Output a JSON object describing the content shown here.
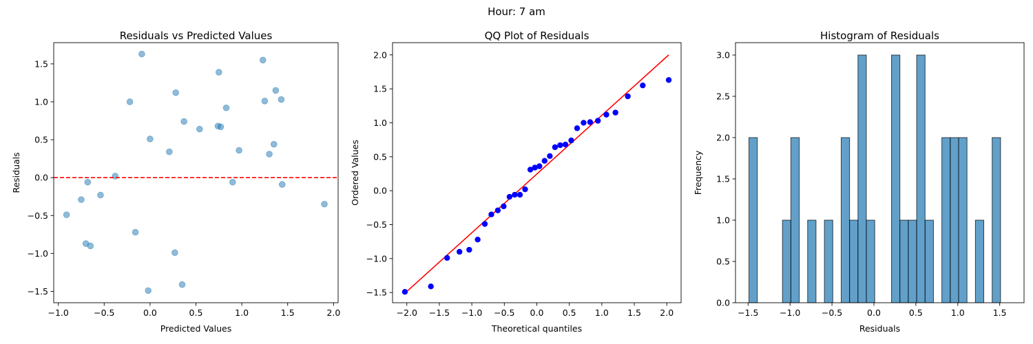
{
  "suptitle": "Hour: 7 am",
  "chart_data": [
    {
      "type": "scatter",
      "title": "Residuals vs Predicted Values",
      "xlabel": "Predicted Values",
      "ylabel": "Residuals",
      "xlim": [
        -1.05,
        2.05
      ],
      "ylim": [
        -1.65,
        1.78
      ],
      "xticks": [
        -1.0,
        -0.5,
        0.0,
        0.5,
        1.0,
        1.5,
        2.0
      ],
      "xtick_labels": [
        "−1.0",
        "−0.5",
        "0.0",
        "0.5",
        "1.0",
        "1.5",
        "2.0"
      ],
      "yticks": [
        -1.5,
        -1.0,
        -0.5,
        0.0,
        0.5,
        1.0,
        1.5
      ],
      "ytick_labels": [
        "−1.5",
        "−1.0",
        "−0.5",
        "0.0",
        "0.5",
        "1.0",
        "1.5"
      ],
      "point_color": "#1f77b4",
      "reference_line": {
        "y": 0.0,
        "color": "#ff0000",
        "style": "dashed"
      },
      "points": [
        {
          "x": -0.09,
          "y": 1.63
        },
        {
          "x": 1.23,
          "y": 1.55
        },
        {
          "x": 0.75,
          "y": 1.39
        },
        {
          "x": 1.37,
          "y": 1.15
        },
        {
          "x": 0.28,
          "y": 1.12
        },
        {
          "x": 1.43,
          "y": 1.03
        },
        {
          "x": 1.25,
          "y": 1.01
        },
        {
          "x": -0.22,
          "y": 1.0
        },
        {
          "x": 0.83,
          "y": 0.92
        },
        {
          "x": 0.37,
          "y": 0.74
        },
        {
          "x": 0.74,
          "y": 0.68
        },
        {
          "x": 0.77,
          "y": 0.67
        },
        {
          "x": 0.54,
          "y": 0.64
        },
        {
          "x": 0.0,
          "y": 0.51
        },
        {
          "x": 1.35,
          "y": 0.44
        },
        {
          "x": 0.97,
          "y": 0.36
        },
        {
          "x": 0.21,
          "y": 0.34
        },
        {
          "x": 1.3,
          "y": 0.31
        },
        {
          "x": -0.38,
          "y": 0.02
        },
        {
          "x": 0.9,
          "y": -0.06
        },
        {
          "x": -0.68,
          "y": -0.06
        },
        {
          "x": 1.44,
          "y": -0.09
        },
        {
          "x": -0.54,
          "y": -0.23
        },
        {
          "x": -0.75,
          "y": -0.29
        },
        {
          "x": 1.9,
          "y": -0.35
        },
        {
          "x": -0.91,
          "y": -0.49
        },
        {
          "x": -0.16,
          "y": -0.72
        },
        {
          "x": -0.7,
          "y": -0.87
        },
        {
          "x": -0.65,
          "y": -0.9
        },
        {
          "x": 0.27,
          "y": -0.99
        },
        {
          "x": 0.35,
          "y": -1.41
        },
        {
          "x": -0.02,
          "y": -1.49
        }
      ]
    },
    {
      "type": "scatter",
      "title": "QQ Plot of Residuals",
      "xlabel": "Theoretical quantiles",
      "ylabel": "Ordered Values",
      "xlim": [
        -2.22,
        2.22
      ],
      "ylim": [
        -1.65,
        2.18
      ],
      "xticks": [
        -2.0,
        -1.5,
        -1.0,
        -0.5,
        0.0,
        0.5,
        1.0,
        1.5,
        2.0
      ],
      "xtick_labels": [
        "−2.0",
        "−1.5",
        "−1.0",
        "−0.5",
        "0.0",
        "0.5",
        "1.0",
        "1.5",
        "2.0"
      ],
      "yticks": [
        -1.5,
        -1.0,
        -0.5,
        0.0,
        0.5,
        1.0,
        1.5,
        2.0
      ],
      "ytick_labels": [
        "−1.5",
        "−1.0",
        "−0.5",
        "0.0",
        "0.5",
        "1.0",
        "1.5",
        "2.0"
      ],
      "point_color": "#0000ff",
      "fit_line": {
        "x": [
          -2.03,
          2.03
        ],
        "y": [
          -1.51,
          2.0
        ],
        "color": "#ff0000"
      },
      "theoretical": [
        -2.03,
        -1.63,
        -1.38,
        -1.19,
        -1.04,
        -0.91,
        -0.8,
        -0.7,
        -0.6,
        -0.51,
        -0.42,
        -0.34,
        -0.26,
        -0.18,
        -0.1,
        -0.03,
        0.04,
        0.12,
        0.2,
        0.28,
        0.36,
        0.44,
        0.53,
        0.62,
        0.72,
        0.82,
        0.94,
        1.07,
        1.21,
        1.4,
        1.63,
        2.03
      ],
      "ordered": [
        -1.49,
        -1.41,
        -0.99,
        -0.9,
        -0.87,
        -0.72,
        -0.49,
        -0.35,
        -0.29,
        -0.23,
        -0.09,
        -0.06,
        -0.06,
        0.02,
        0.31,
        0.34,
        0.36,
        0.44,
        0.51,
        0.64,
        0.67,
        0.68,
        0.74,
        0.92,
        1.0,
        1.01,
        1.03,
        1.12,
        1.15,
        1.39,
        1.55,
        1.63
      ]
    },
    {
      "type": "bar",
      "title": "Histogram of Residuals",
      "xlabel": "Residuals",
      "ylabel": "Frequency",
      "xlim": [
        -1.65,
        1.79
      ],
      "ylim": [
        0,
        3.15
      ],
      "xticks": [
        -1.5,
        -1.0,
        -0.5,
        0.0,
        0.5,
        1.0,
        1.5
      ],
      "xtick_labels": [
        "−1.5",
        "−1.0",
        "−0.5",
        "0.0",
        "0.5",
        "1.0",
        "1.5"
      ],
      "yticks": [
        0.0,
        0.5,
        1.0,
        1.5,
        2.0,
        2.5,
        3.0
      ],
      "ytick_labels": [
        "0.0",
        "0.5",
        "1.0",
        "1.5",
        "2.0",
        "2.5",
        "3.0"
      ],
      "bar_color": "#1f77b4",
      "bin_start": -1.49,
      "bin_width": 0.1,
      "counts": [
        2,
        0,
        0,
        0,
        1,
        2,
        0,
        1,
        0,
        1,
        0,
        2,
        1,
        3,
        1,
        0,
        0,
        3,
        1,
        1,
        3,
        1,
        0,
        2,
        2,
        2,
        0,
        1,
        0,
        2
      ]
    }
  ]
}
